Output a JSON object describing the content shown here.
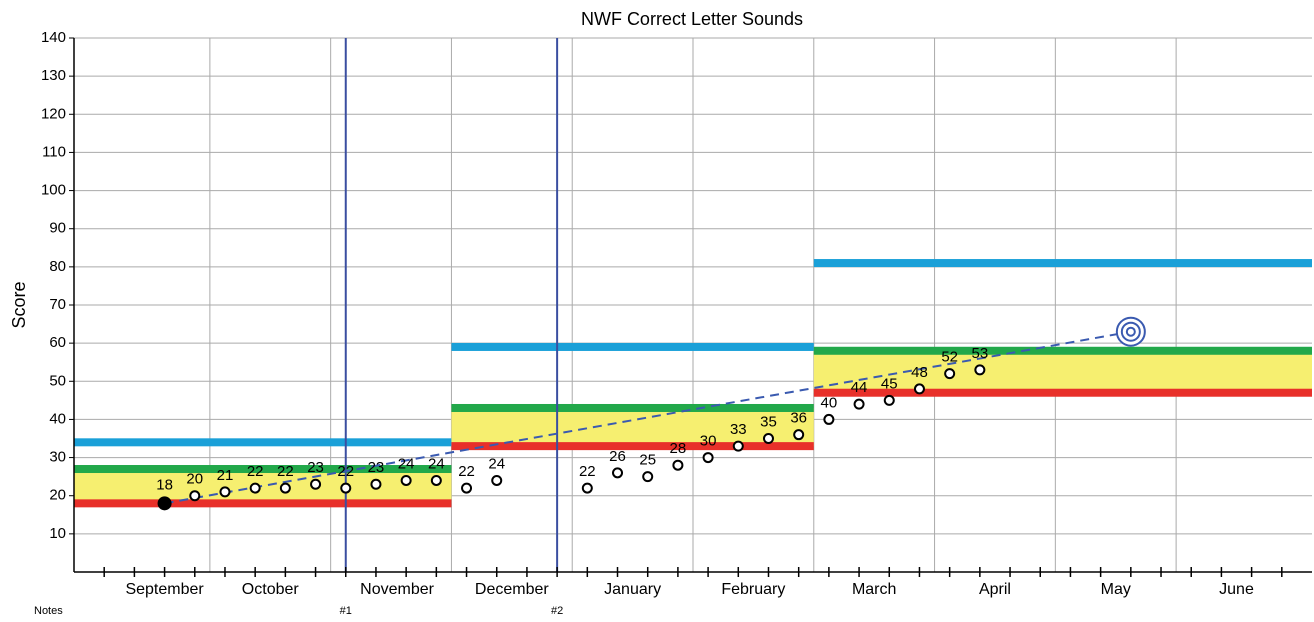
{
  "chart_data": {
    "type": "scatter",
    "title": "NWF Correct Letter Sounds",
    "y_label": "Score",
    "notes_label": "Notes",
    "xlim": [
      0,
      41
    ],
    "ylim": [
      0,
      140
    ],
    "yticks": [
      10,
      20,
      30,
      40,
      50,
      60,
      70,
      80,
      90,
      100,
      110,
      120,
      130,
      140
    ],
    "xticks": [
      {
        "value": 3,
        "label": "September"
      },
      {
        "value": 6.5,
        "label": "October"
      },
      {
        "value": 10.7,
        "label": "November"
      },
      {
        "value": 14.5,
        "label": "December"
      },
      {
        "value": 18.5,
        "label": "January"
      },
      {
        "value": 22.5,
        "label": "February"
      },
      {
        "value": 26.5,
        "label": "March"
      },
      {
        "value": 30.5,
        "label": "April"
      },
      {
        "value": 34.5,
        "label": "May"
      },
      {
        "value": 38.5,
        "label": "June"
      }
    ],
    "xgrid": [
      4.5,
      8.5,
      12.5,
      16.5,
      20.5,
      24.5,
      28.5,
      32.5,
      36.5
    ],
    "grid": true,
    "baseline": {
      "x": 3,
      "value": 18,
      "color": "#000000"
    },
    "series": [
      {
        "name": "Scores",
        "color": "#000000",
        "x": [
          4,
          5,
          6,
          7,
          8,
          9,
          10,
          11,
          12,
          13,
          14,
          17,
          18,
          19,
          20,
          21,
          22,
          23,
          24,
          25,
          26,
          27,
          28,
          29,
          30
        ],
        "values": [
          20,
          21,
          22,
          22,
          23,
          22,
          23,
          24,
          24,
          22,
          24,
          22,
          26,
          25,
          28,
          30,
          33,
          35,
          36,
          40,
          44,
          45,
          48,
          52,
          53
        ]
      }
    ],
    "phase_lines": [
      {
        "x": 9,
        "label": "#1"
      },
      {
        "x": 16,
        "label": "#2"
      }
    ],
    "phase_color": "#3a4ea0",
    "bands": [
      {
        "x": [
          0,
          12.5
        ],
        "low": 18,
        "high": 27,
        "goal": 34
      },
      {
        "x": [
          12.5,
          24.5
        ],
        "low": 33,
        "high": 43,
        "goal": 59
      },
      {
        "x": [
          24.5,
          41
        ],
        "low": 47,
        "high": 58,
        "goal": 81
      }
    ],
    "band_colors": {
      "low": "#e8302a",
      "fill": "#f6ef70",
      "high": "#22a84a",
      "goal": "#1aa0d8"
    },
    "trend": {
      "x": [
        3,
        35
      ],
      "values": [
        18,
        63
      ],
      "color": "#3a5ab0"
    },
    "goal_marker": {
      "x": 35,
      "value": 63,
      "color": "#3a5ab0"
    }
  }
}
